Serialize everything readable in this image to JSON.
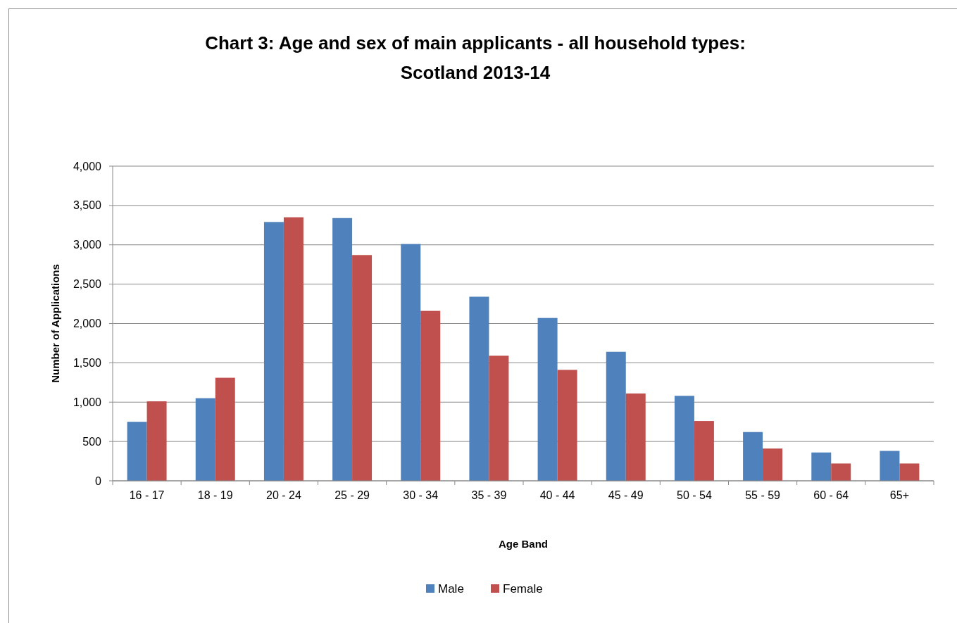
{
  "chart_data": {
    "type": "bar",
    "title": "Chart 3: Age and sex of main applicants - all household types:\nScotland 2013-14",
    "xlabel": "Age Band",
    "ylabel": "Number of Applications",
    "categories": [
      "16 - 17",
      "18 - 19",
      "20 - 24",
      "25 - 29",
      "30 - 34",
      "35 - 39",
      "40 - 44",
      "45 - 49",
      "50 - 54",
      "55 - 59",
      "60 - 64",
      "65+"
    ],
    "series": [
      {
        "name": "Male",
        "color": "#4f81bd",
        "values": [
          750,
          1050,
          3290,
          3340,
          3010,
          2340,
          2070,
          1640,
          1080,
          620,
          360,
          380
        ]
      },
      {
        "name": "Female",
        "color": "#c0504d",
        "values": [
          1010,
          1310,
          3350,
          2870,
          2160,
          1590,
          1410,
          1110,
          760,
          410,
          220,
          220
        ]
      }
    ],
    "ylim": [
      0,
      4000
    ],
    "yticks": [
      {
        "value": 0,
        "label": "0"
      },
      {
        "value": 500,
        "label": "500"
      },
      {
        "value": 1000,
        "label": "1,000"
      },
      {
        "value": 1500,
        "label": "1,500"
      },
      {
        "value": 2000,
        "label": "2,000"
      },
      {
        "value": 2500,
        "label": "2,500"
      },
      {
        "value": 3000,
        "label": "3,000"
      },
      {
        "value": 3500,
        "label": "3,500"
      },
      {
        "value": 4000,
        "label": "4,000"
      }
    ],
    "grid": "y",
    "legend": "bottom"
  }
}
